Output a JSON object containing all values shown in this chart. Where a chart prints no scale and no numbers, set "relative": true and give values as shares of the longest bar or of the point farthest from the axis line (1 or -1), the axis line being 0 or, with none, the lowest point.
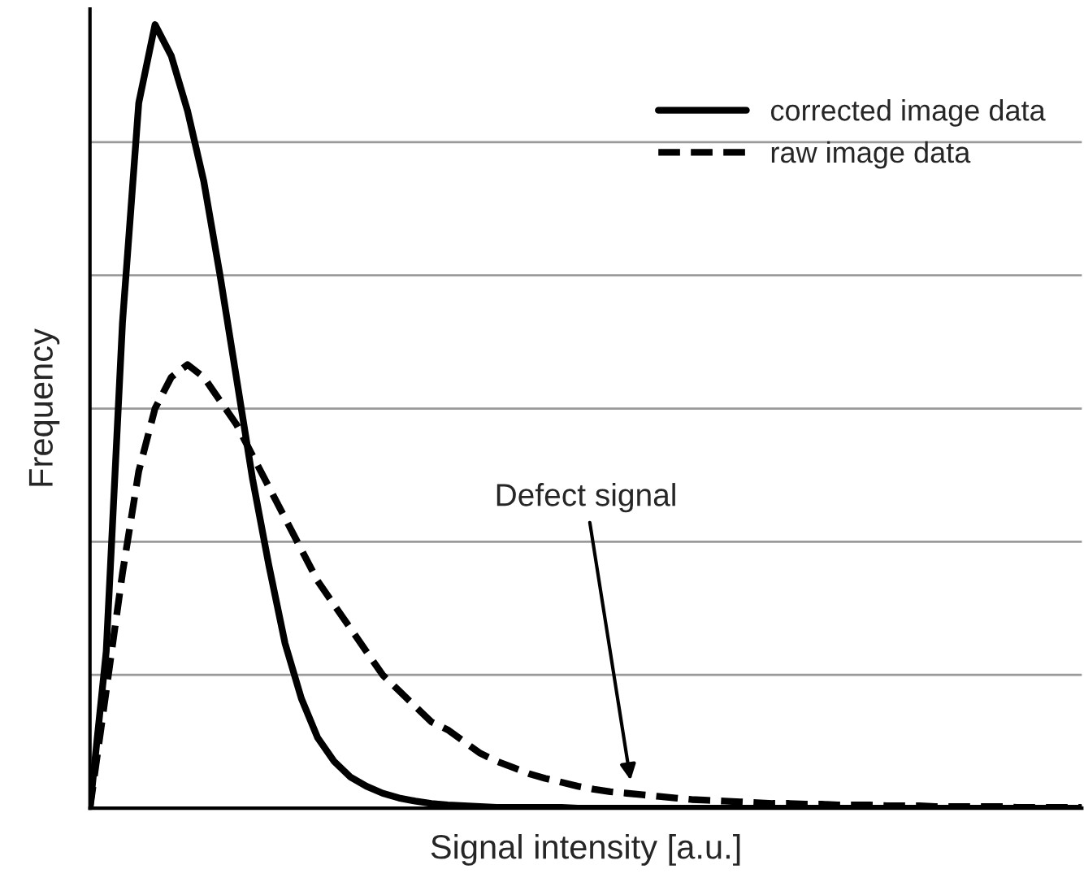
{
  "chart_data": {
    "type": "line",
    "relative": true,
    "xlabel": "Signal intensity [a.u.]",
    "ylabel": "Frequency",
    "categories": [
      null,
      null,
      null,
      null,
      null,
      null,
      null,
      null,
      null,
      null,
      null,
      null,
      null,
      null,
      null,
      null,
      null,
      null,
      null,
      null,
      null,
      null,
      null,
      null,
      null,
      null,
      null,
      null,
      null,
      null,
      null,
      null,
      null,
      null,
      null,
      null,
      null,
      null,
      null,
      null,
      null,
      null,
      null,
      null,
      null,
      null,
      null,
      null,
      null,
      null,
      null,
      null,
      null,
      null,
      null,
      null,
      null,
      null,
      null,
      null,
      null,
      null
    ],
    "series": [
      {
        "name": "corrected image data",
        "color": "#000000",
        "line_style": "solid",
        "values": [
          0,
          0.2,
          0.62,
          0.9,
          1,
          0.96,
          0.89,
          0.8,
          0.68,
          0.55,
          0.42,
          0.31,
          0.21,
          0.14,
          0.09,
          0.06,
          0.04,
          0.028,
          0.019,
          0.013,
          0.009,
          0.006,
          0.004,
          0.003,
          0.002,
          0.001,
          0.001,
          0.001,
          0.001,
          0.001,
          0,
          0,
          0,
          0,
          0,
          0,
          0,
          0,
          0,
          0,
          0,
          0,
          0,
          0,
          0,
          0,
          0,
          0,
          0,
          0,
          0,
          0,
          0,
          0,
          0,
          0,
          0,
          0,
          0,
          0,
          0,
          0
        ]
      },
      {
        "name": "raw image data",
        "color": "#000000",
        "line_style": "dashed",
        "values": [
          0,
          0.15,
          0.3,
          0.43,
          0.51,
          0.55,
          0.566,
          0.55,
          0.52,
          0.49,
          0.45,
          0.41,
          0.37,
          0.33,
          0.29,
          0.26,
          0.23,
          0.2,
          0.17,
          0.15,
          0.13,
          0.11,
          0.1,
          0.085,
          0.07,
          0.06,
          0.052,
          0.044,
          0.038,
          0.033,
          0.028,
          0.024,
          0.021,
          0.019,
          0.017,
          0.015,
          0.013,
          0.011,
          0.01,
          0.009,
          0.008,
          0.007,
          0.006,
          0.006,
          0.005,
          0.005,
          0.004,
          0.004,
          0.004,
          0.003,
          0.003,
          0.003,
          0.002,
          0.002,
          0.002,
          0.002,
          0.002,
          0.001,
          0.001,
          0.001,
          0.001,
          0.001
        ]
      }
    ],
    "annotations": [
      "Defect signal"
    ],
    "grid": "y",
    "legend": "top right"
  }
}
